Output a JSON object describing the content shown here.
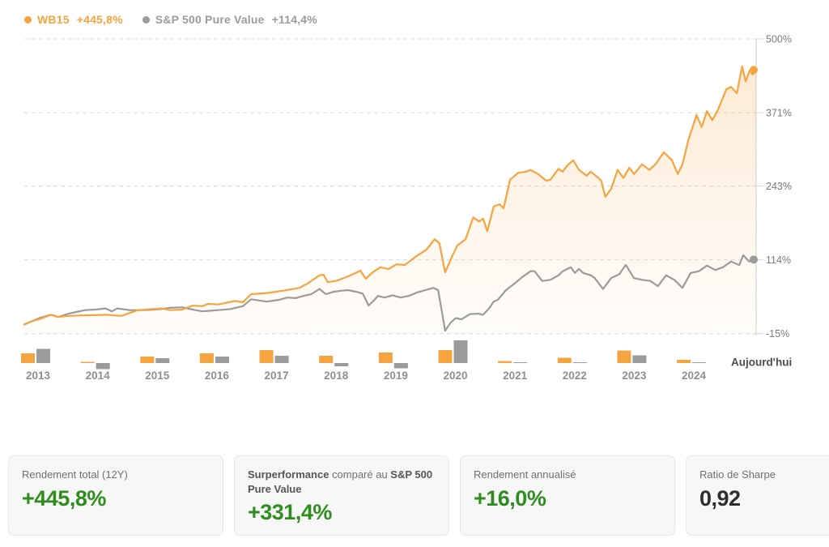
{
  "theme": {
    "orange": "#F5A43F",
    "gray": "#9B9B9B",
    "green": "#2F8C1E",
    "dark": "#2E2E2E",
    "grid": "#DBDBDB",
    "axis": "#D5D5D5",
    "tick_label": "#7A7A7A",
    "year_label": "#8F8F8F",
    "today": "#4D4D4D",
    "card_bg": "#F7F7F7",
    "card_border": "#E7E7E7",
    "card_label": "#707070",
    "card_label_bold": "#565656"
  },
  "legend": [
    {
      "name": "WB15",
      "value": "+445,8%"
    },
    {
      "name": "S&P 500 Pure Value",
      "value": "+114,4%"
    }
  ],
  "cards": [
    {
      "label": "Rendement total (12Y)",
      "value": "+445,8%"
    },
    {
      "label_bold1": "Surperformance",
      "label_mid": " comparé au ",
      "label_bold2": "S&P 500 Pure Value",
      "value": "+331,4%"
    },
    {
      "label": "Rendement annualisé",
      "value": "+16,0%"
    },
    {
      "label": "Ratio de Sharpe",
      "value": "0,92"
    }
  ],
  "chart_data": {
    "type": "line",
    "title": "",
    "legend_position": "top-left",
    "grid": "horizontal-dashed",
    "y_axis": {
      "side": "right",
      "range": [
        -15,
        500
      ],
      "ticks": [
        {
          "label": "500%",
          "value": 500
        },
        {
          "label": "371%",
          "value": 371
        },
        {
          "label": "243%",
          "value": 243
        },
        {
          "label": "114%",
          "value": 114
        },
        {
          "label": "-15%",
          "value": -15
        }
      ]
    },
    "x_axis": {
      "range_years": [
        2013.0,
        2025.52
      ],
      "year_labels": [
        "2013",
        "2014",
        "2015",
        "2016",
        "2017",
        "2018",
        "2019",
        "2020",
        "2021",
        "2022",
        "2023",
        "2024"
      ],
      "today_label": "Aujourd'hui"
    },
    "series": [
      {
        "name": "WB15",
        "color": "#F5A43F",
        "area_fill": true,
        "end_value": 445.8,
        "points": [
          [
            2013.0,
            1
          ],
          [
            2013.14,
            7
          ],
          [
            2013.28,
            11
          ],
          [
            2013.46,
            18
          ],
          [
            2013.58,
            14
          ],
          [
            2013.76,
            16
          ],
          [
            2014.04,
            17
          ],
          [
            2014.39,
            18
          ],
          [
            2014.66,
            16
          ],
          [
            2014.94,
            26
          ],
          [
            2015.08,
            27
          ],
          [
            2015.35,
            29
          ],
          [
            2015.49,
            26
          ],
          [
            2015.7,
            27
          ],
          [
            2015.88,
            34
          ],
          [
            2016.05,
            33
          ],
          [
            2016.14,
            37
          ],
          [
            2016.32,
            36
          ],
          [
            2016.6,
            42
          ],
          [
            2016.74,
            40
          ],
          [
            2016.88,
            54
          ],
          [
            2017.15,
            56
          ],
          [
            2017.43,
            60
          ],
          [
            2017.71,
            65
          ],
          [
            2017.85,
            73
          ],
          [
            2018.05,
            87
          ],
          [
            2018.12,
            88
          ],
          [
            2018.19,
            75
          ],
          [
            2018.33,
            77
          ],
          [
            2018.54,
            85
          ],
          [
            2018.75,
            95
          ],
          [
            2018.84,
            81
          ],
          [
            2018.96,
            92
          ],
          [
            2019.09,
            101
          ],
          [
            2019.23,
            98
          ],
          [
            2019.37,
            106
          ],
          [
            2019.51,
            105
          ],
          [
            2019.69,
            119
          ],
          [
            2019.88,
            132
          ],
          [
            2020.02,
            150
          ],
          [
            2020.1,
            143
          ],
          [
            2020.2,
            92
          ],
          [
            2020.31,
            118
          ],
          [
            2020.41,
            139
          ],
          [
            2020.55,
            150
          ],
          [
            2020.68,
            188
          ],
          [
            2020.78,
            181
          ],
          [
            2020.85,
            186
          ],
          [
            2020.92,
            164
          ],
          [
            2021.03,
            207
          ],
          [
            2021.13,
            211
          ],
          [
            2021.2,
            204
          ],
          [
            2021.31,
            254
          ],
          [
            2021.45,
            266
          ],
          [
            2021.59,
            268
          ],
          [
            2021.66,
            271
          ],
          [
            2021.79,
            264
          ],
          [
            2021.93,
            252
          ],
          [
            2022.0,
            254
          ],
          [
            2022.14,
            273
          ],
          [
            2022.21,
            268
          ],
          [
            2022.28,
            278
          ],
          [
            2022.39,
            288
          ],
          [
            2022.49,
            271
          ],
          [
            2022.62,
            261
          ],
          [
            2022.69,
            268
          ],
          [
            2022.8,
            259
          ],
          [
            2022.87,
            252
          ],
          [
            2022.94,
            224
          ],
          [
            2023.04,
            238
          ],
          [
            2023.15,
            271
          ],
          [
            2023.25,
            257
          ],
          [
            2023.35,
            275
          ],
          [
            2023.43,
            264
          ],
          [
            2023.57,
            281
          ],
          [
            2023.69,
            271
          ],
          [
            2023.8,
            281
          ],
          [
            2023.94,
            302
          ],
          [
            2024.08,
            288
          ],
          [
            2024.18,
            264
          ],
          [
            2024.26,
            281
          ],
          [
            2024.36,
            323
          ],
          [
            2024.5,
            367
          ],
          [
            2024.59,
            346
          ],
          [
            2024.68,
            374
          ],
          [
            2024.77,
            358
          ],
          [
            2024.87,
            377
          ],
          [
            2025.01,
            412
          ],
          [
            2025.09,
            416
          ],
          [
            2025.19,
            405
          ],
          [
            2025.28,
            452
          ],
          [
            2025.34,
            426
          ],
          [
            2025.41,
            445
          ],
          [
            2025.46,
            438
          ],
          [
            2025.52,
            445.8
          ]
        ]
      },
      {
        "name": "S&P 500 Pure Value",
        "color": "#9B9B9B",
        "area_fill": false,
        "end_value": 114.4,
        "points": [
          [
            2013.0,
            1
          ],
          [
            2013.28,
            13
          ],
          [
            2013.46,
            18
          ],
          [
            2013.58,
            14
          ],
          [
            2013.76,
            20
          ],
          [
            2014.04,
            26
          ],
          [
            2014.22,
            27
          ],
          [
            2014.39,
            29
          ],
          [
            2014.5,
            24
          ],
          [
            2014.59,
            29
          ],
          [
            2014.8,
            26
          ],
          [
            2014.94,
            26
          ],
          [
            2015.08,
            26
          ],
          [
            2015.22,
            27
          ],
          [
            2015.35,
            28
          ],
          [
            2015.49,
            30
          ],
          [
            2015.7,
            31
          ],
          [
            2015.88,
            27
          ],
          [
            2016.05,
            24
          ],
          [
            2016.32,
            26
          ],
          [
            2016.53,
            28
          ],
          [
            2016.74,
            33
          ],
          [
            2016.88,
            45
          ],
          [
            2017.01,
            43
          ],
          [
            2017.15,
            41
          ],
          [
            2017.36,
            44
          ],
          [
            2017.5,
            48
          ],
          [
            2017.64,
            47
          ],
          [
            2017.78,
            51
          ],
          [
            2017.91,
            54
          ],
          [
            2018.05,
            63
          ],
          [
            2018.16,
            54
          ],
          [
            2018.29,
            58
          ],
          [
            2018.43,
            60
          ],
          [
            2018.54,
            61
          ],
          [
            2018.68,
            58
          ],
          [
            2018.79,
            55
          ],
          [
            2018.89,
            34
          ],
          [
            2018.99,
            44
          ],
          [
            2019.05,
            51
          ],
          [
            2019.16,
            48
          ],
          [
            2019.3,
            52
          ],
          [
            2019.44,
            48
          ],
          [
            2019.58,
            51
          ],
          [
            2019.72,
            57
          ],
          [
            2019.86,
            61
          ],
          [
            2020.0,
            65
          ],
          [
            2020.08,
            61
          ],
          [
            2020.2,
            -10
          ],
          [
            2020.29,
            4
          ],
          [
            2020.38,
            12
          ],
          [
            2020.48,
            10
          ],
          [
            2020.62,
            19
          ],
          [
            2020.76,
            20
          ],
          [
            2020.85,
            18
          ],
          [
            2020.96,
            30
          ],
          [
            2021.03,
            41
          ],
          [
            2021.1,
            44
          ],
          [
            2021.24,
            61
          ],
          [
            2021.38,
            72
          ],
          [
            2021.52,
            84
          ],
          [
            2021.66,
            94
          ],
          [
            2021.73,
            94
          ],
          [
            2021.86,
            77
          ],
          [
            2022.0,
            79
          ],
          [
            2022.14,
            87
          ],
          [
            2022.21,
            94
          ],
          [
            2022.35,
            101
          ],
          [
            2022.42,
            91
          ],
          [
            2022.49,
            98
          ],
          [
            2022.56,
            91
          ],
          [
            2022.69,
            87
          ],
          [
            2022.76,
            82
          ],
          [
            2022.9,
            63
          ],
          [
            2023.04,
            82
          ],
          [
            2023.18,
            89
          ],
          [
            2023.29,
            105
          ],
          [
            2023.43,
            82
          ],
          [
            2023.57,
            79
          ],
          [
            2023.71,
            77
          ],
          [
            2023.84,
            68
          ],
          [
            2023.98,
            87
          ],
          [
            2024.12,
            79
          ],
          [
            2024.26,
            65
          ],
          [
            2024.4,
            91
          ],
          [
            2024.54,
            94
          ],
          [
            2024.68,
            104
          ],
          [
            2024.82,
            96
          ],
          [
            2024.95,
            101
          ],
          [
            2025.09,
            111
          ],
          [
            2025.23,
            105
          ],
          [
            2025.3,
            122
          ],
          [
            2025.4,
            111
          ],
          [
            2025.52,
            114.4
          ]
        ]
      }
    ],
    "yearly_bars": {
      "note": "paired mini bars per year under main chart; no value axis shown, heights are relative units",
      "years": [
        "2013",
        "2014",
        "2015",
        "2016",
        "2017",
        "2018",
        "2019",
        "2020",
        "2021",
        "2022",
        "2023",
        "2024"
      ],
      "wb15": [
        12,
        1.5,
        8,
        12,
        16,
        9,
        13,
        16,
        2.5,
        6.5,
        15.5,
        4
      ],
      "sp500_pure_value": [
        17.5,
        -7.5,
        6,
        8,
        9,
        -4,
        -6.5,
        28,
        1,
        0.8,
        9.5,
        1
      ]
    }
  }
}
